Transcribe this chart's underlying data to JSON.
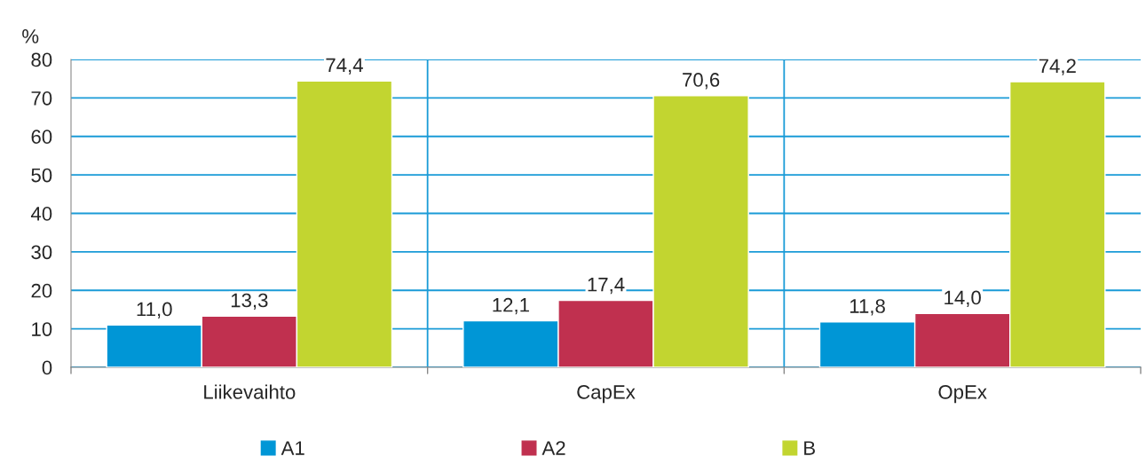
{
  "chart_data": {
    "type": "bar",
    "ylabel": "%",
    "categories": [
      "Liikevaihto",
      "CapEx",
      "OpEx"
    ],
    "series": [
      {
        "name": "A1",
        "color": "#0096d6",
        "values": [
          11.0,
          12.1,
          11.8
        ],
        "value_labels": [
          "11,0",
          "12,1",
          "11,8"
        ]
      },
      {
        "name": "A2",
        "color": "#c0304f",
        "values": [
          13.3,
          17.4,
          14.0
        ],
        "value_labels": [
          "13,3",
          "17,4",
          "14,0"
        ]
      },
      {
        "name": "B",
        "color": "#c2d530",
        "values": [
          74.4,
          70.6,
          74.2
        ],
        "value_labels": [
          "74,4",
          "70,6",
          "74,2"
        ]
      }
    ],
    "ylim": [
      0,
      80
    ],
    "yticks": [
      0,
      10,
      20,
      30,
      40,
      50,
      60,
      70,
      80
    ],
    "grid": true,
    "legend": "bottom"
  }
}
